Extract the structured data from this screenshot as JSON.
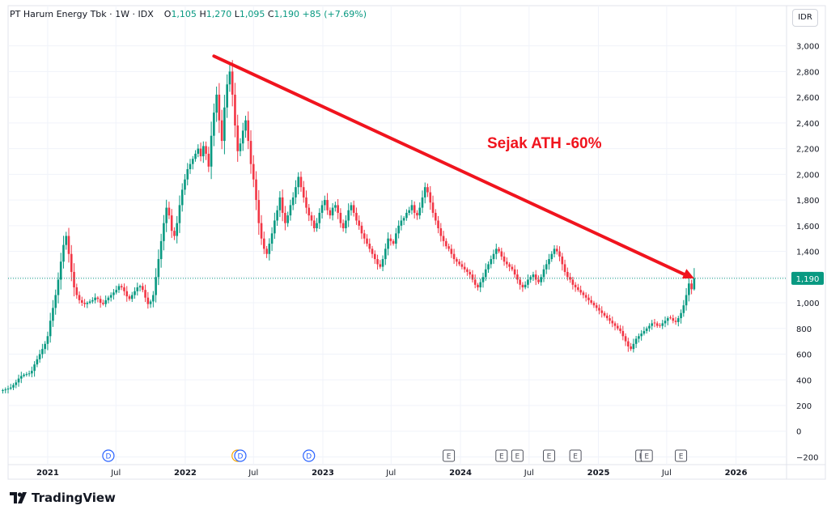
{
  "legend": {
    "symbol": "PT Harum Energy Tbk · 1W · IDX",
    "o_label": "O",
    "o": "1,105",
    "h_label": "H",
    "h": "1,270",
    "l_label": "L",
    "l": "1,095",
    "c_label": "C",
    "c": "1,190",
    "change": "+85 (+7.69%)"
  },
  "currency_button": "IDR",
  "annotation": {
    "text": "Sejak ATH -60%",
    "color": "#f0141e"
  },
  "last_price_label": "1,190",
  "brand": "TradingView",
  "colors": {
    "up": "#089981",
    "down": "#f23645",
    "grid": "#f0f3fa",
    "arrow": "#f0141e",
    "dividend": "#2962ff",
    "split": "#f7a600",
    "earnings": "#50535e"
  },
  "chart_data": {
    "type": "candlestick",
    "interval": "1W",
    "ylim": [
      -260,
      3130
    ],
    "yticks": [
      {
        "value": 3000,
        "label": "3,000"
      },
      {
        "value": 2800,
        "label": "2,800"
      },
      {
        "value": 2600,
        "label": "2,600"
      },
      {
        "value": 2400,
        "label": "2,400"
      },
      {
        "value": 2200,
        "label": "2,200"
      },
      {
        "value": 2000,
        "label": "2,000"
      },
      {
        "value": 1800,
        "label": "1,800"
      },
      {
        "value": 1600,
        "label": "1,600"
      },
      {
        "value": 1400,
        "label": "1,400"
      },
      {
        "value": 1200,
        "label": "1,200"
      },
      {
        "value": 1000,
        "label": "1,000"
      },
      {
        "value": 800,
        "label": "800"
      },
      {
        "value": 600,
        "label": "600"
      },
      {
        "value": 400,
        "label": "400"
      },
      {
        "value": 200,
        "label": "200"
      },
      {
        "value": 0,
        "label": "0"
      },
      {
        "value": -200,
        "label": "−200"
      }
    ],
    "xlim": [
      "2020-09-18",
      "2026-05-15"
    ],
    "xticks": [
      {
        "date": "2021-01-01",
        "label": "2021",
        "bold": true
      },
      {
        "date": "2021-07-01",
        "label": "Jul",
        "bold": false
      },
      {
        "date": "2022-01-01",
        "label": "2022",
        "bold": true
      },
      {
        "date": "2022-07-01",
        "label": "Jul",
        "bold": false
      },
      {
        "date": "2023-01-01",
        "label": "2023",
        "bold": true
      },
      {
        "date": "2023-07-01",
        "label": "Jul",
        "bold": false
      },
      {
        "date": "2024-01-01",
        "label": "2024",
        "bold": true
      },
      {
        "date": "2024-07-01",
        "label": "Jul",
        "bold": false
      },
      {
        "date": "2025-01-01",
        "label": "2025",
        "bold": true
      },
      {
        "date": "2025-07-01",
        "label": "Jul",
        "bold": false
      },
      {
        "date": "2026-01-01",
        "label": "2026",
        "bold": true
      }
    ],
    "last_price": 1190,
    "trendline": {
      "from": {
        "date": "2022-03-18",
        "value": 2920
      },
      "to": {
        "date": "2025-09-12",
        "value": 1190
      }
    },
    "events": [
      {
        "date": "2021-06-11",
        "kind": "dividend",
        "label": "D"
      },
      {
        "date": "2022-05-20",
        "kind": "split",
        "label": "S"
      },
      {
        "date": "2022-05-27",
        "kind": "dividend",
        "label": "D"
      },
      {
        "date": "2022-11-25",
        "kind": "dividend",
        "label": "D"
      },
      {
        "date": "2023-12-01",
        "kind": "earnings",
        "label": "E"
      },
      {
        "date": "2024-04-19",
        "kind": "earnings",
        "label": "E"
      },
      {
        "date": "2024-05-31",
        "kind": "earnings",
        "label": "E"
      },
      {
        "date": "2024-08-23",
        "kind": "earnings",
        "label": "E"
      },
      {
        "date": "2024-11-01",
        "kind": "earnings",
        "label": "E"
      },
      {
        "date": "2025-04-25",
        "kind": "earnings",
        "label": "E"
      },
      {
        "date": "2025-05-09",
        "kind": "earnings",
        "label": "E"
      },
      {
        "date": "2025-08-08",
        "kind": "earnings",
        "label": "E"
      }
    ],
    "closes": [
      320,
      325,
      332,
      340,
      360,
      380,
      410,
      430,
      440,
      445,
      450,
      470,
      520,
      560,
      600,
      640,
      680,
      740,
      860,
      960,
      1060,
      1180,
      1320,
      1450,
      1520,
      1380,
      1240,
      1120,
      1060,
      1020,
      1000,
      990,
      1000,
      1010,
      1020,
      1040,
      1030,
      1000,
      990,
      1020,
      1040,
      1060,
      1080,
      1100,
      1130,
      1120,
      1090,
      1050,
      1030,
      1060,
      1090,
      1120,
      1130,
      1100,
      1040,
      990,
      1010,
      1060,
      1200,
      1340,
      1480,
      1620,
      1740,
      1680,
      1560,
      1520,
      1620,
      1760,
      1880,
      1960,
      2040,
      2080,
      2120,
      2160,
      2200,
      2140,
      2220,
      2160,
      2060,
      2300,
      2480,
      2620,
      2420,
      2260,
      2520,
      2700,
      2800,
      2620,
      2380,
      2180,
      2240,
      2340,
      2420,
      2260,
      2080,
      1960,
      1800,
      1620,
      1500,
      1420,
      1380,
      1460,
      1540,
      1640,
      1720,
      1820,
      1700,
      1620,
      1680,
      1760,
      1820,
      1900,
      1980,
      1900,
      1820,
      1740,
      1680,
      1640,
      1580,
      1620,
      1700,
      1760,
      1800,
      1720,
      1680,
      1740,
      1760,
      1700,
      1620,
      1580,
      1640,
      1720,
      1760,
      1700,
      1640,
      1600,
      1540,
      1500,
      1460,
      1420,
      1380,
      1340,
      1300,
      1280,
      1340,
      1420,
      1500,
      1480,
      1460,
      1540,
      1600,
      1640,
      1660,
      1700,
      1720,
      1760,
      1700,
      1680,
      1740,
      1820,
      1900,
      1860,
      1780,
      1700,
      1640,
      1580,
      1520,
      1480,
      1440,
      1420,
      1380,
      1340,
      1320,
      1300,
      1280,
      1260,
      1240,
      1220,
      1180,
      1140,
      1120,
      1160,
      1200,
      1260,
      1300,
      1340,
      1380,
      1420,
      1400,
      1360,
      1320,
      1300,
      1280,
      1260,
      1220,
      1180,
      1140,
      1120,
      1140,
      1180,
      1200,
      1220,
      1180,
      1160,
      1200,
      1260,
      1300,
      1340,
      1380,
      1420,
      1400,
      1360,
      1300,
      1240,
      1200,
      1180,
      1140,
      1120,
      1100,
      1080,
      1060,
      1040,
      1020,
      1000,
      980,
      960,
      940,
      920,
      900,
      880,
      860,
      840,
      820,
      800,
      780,
      740,
      700,
      660,
      640,
      680,
      720,
      740,
      760,
      780,
      800,
      820,
      840,
      840,
      820,
      820,
      840,
      860,
      880,
      880,
      860,
      850,
      880,
      920,
      980,
      1060,
      1150,
      1105,
      1190
    ]
  }
}
